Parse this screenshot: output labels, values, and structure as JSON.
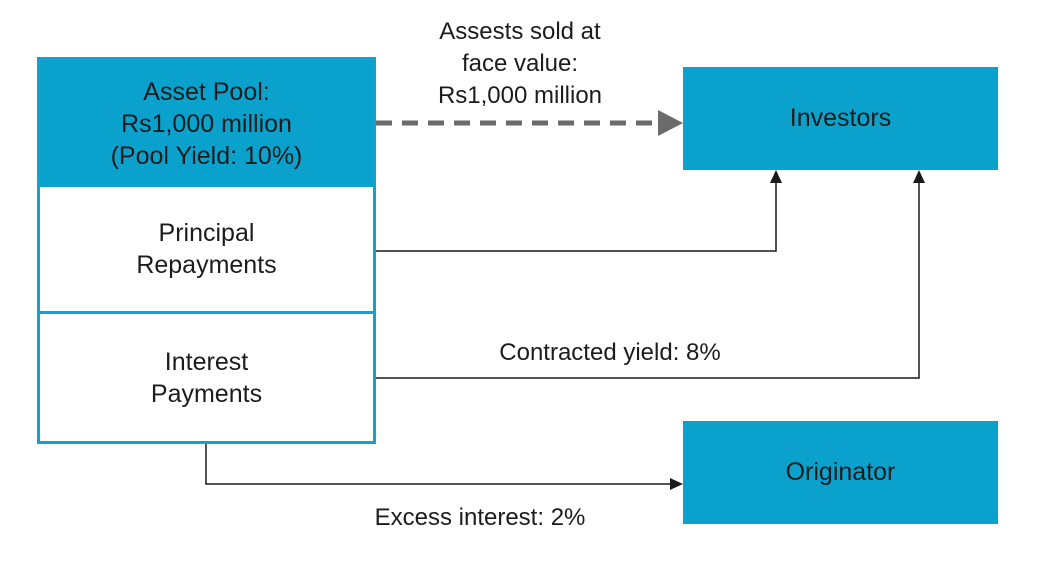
{
  "pool": {
    "header": "Asset Pool:\nRs1,000 million\n(Pool Yield: 10%)",
    "principal": "Principal\nRepayments",
    "interest": "Interest\nPayments"
  },
  "nodes": {
    "investors": "Investors",
    "originator": "Originator"
  },
  "edges": {
    "assets_sold": "Assests sold at\nface value:\nRs1,000 million",
    "contracted_yield": "Contracted yield: 8%",
    "excess_interest": "Excess interest: 2%"
  },
  "colors": {
    "box_fill": "#0aa1cd",
    "box_border": "#0fa4cf",
    "dashed_arrow": "#6b6b6b",
    "line": "#1a1a1a"
  }
}
